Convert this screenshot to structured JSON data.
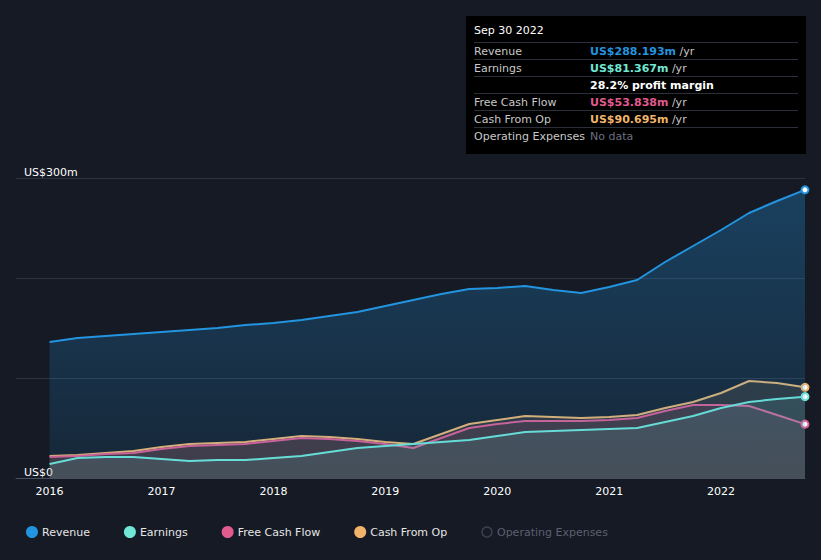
{
  "chart_data": {
    "type": "line",
    "x": [
      2016,
      2016.25,
      2016.5,
      2016.75,
      2017,
      2017.25,
      2017.5,
      2017.75,
      2018,
      2018.25,
      2018.5,
      2018.75,
      2019,
      2019.25,
      2019.5,
      2019.75,
      2020,
      2020.25,
      2020.5,
      2020.75,
      2021,
      2021.25,
      2021.5,
      2021.75,
      2022,
      2022.25,
      2022.5,
      2022.75
    ],
    "xlim": [
      2015.7,
      2022.75
    ],
    "xticks": [
      2016,
      2017,
      2018,
      2019,
      2020,
      2021,
      2022
    ],
    "ylim": [
      0,
      300
    ],
    "yticks": [
      {
        "value": 0,
        "label": "US$0"
      },
      {
        "value": 300,
        "label": "US$300m"
      }
    ],
    "grid": true,
    "legend": "bottom",
    "series": [
      {
        "name": "Revenue",
        "color": "#2394df",
        "values": [
          136,
          140,
          142,
          144,
          146,
          148,
          150,
          153,
          155,
          158,
          162,
          166,
          172,
          178,
          184,
          189,
          190,
          192,
          188,
          185,
          191,
          198,
          216,
          232,
          248,
          265,
          277,
          288.193
        ]
      },
      {
        "name": "Earnings",
        "color": "#71e7d6",
        "values": [
          14,
          20,
          21,
          21,
          19,
          17,
          18,
          18,
          20,
          22,
          26,
          30,
          32,
          34,
          36,
          38,
          42,
          46,
          47,
          48,
          49,
          50,
          56,
          62,
          70,
          76,
          79,
          81.367
        ]
      },
      {
        "name": "Free Cash Flow",
        "color": "#e15b8f",
        "values": [
          21,
          22,
          24,
          25,
          29,
          32,
          33,
          34,
          37,
          40,
          39,
          37,
          34,
          30,
          40,
          50,
          54,
          57,
          57,
          57,
          58,
          60,
          67,
          73,
          73,
          72,
          63,
          53.838
        ]
      },
      {
        "name": "Cash From Op",
        "color": "#f0b36b",
        "values": [
          22,
          23,
          25,
          27,
          31,
          34,
          35,
          36,
          39,
          42,
          41,
          39,
          36,
          34,
          44,
          54,
          58,
          62,
          61,
          60,
          61,
          63,
          70,
          76,
          85,
          97,
          95,
          90.695
        ]
      },
      {
        "name": "Operating Expenses",
        "color": "#3a4152",
        "values": [
          null,
          null,
          null,
          null,
          null,
          null,
          null,
          null,
          null,
          null,
          null,
          null,
          null,
          null,
          null,
          null,
          null,
          null,
          null,
          null,
          null,
          null,
          null,
          null,
          null,
          null,
          null,
          null
        ]
      }
    ],
    "annotation": {
      "title": "Sep 30 2022",
      "rows": [
        {
          "label": "Revenue",
          "text": "US$288.193m",
          "unit": " /yr",
          "color": "#2394df"
        },
        {
          "label": "Earnings",
          "text": "US$81.367m",
          "unit": " /yr",
          "color": "#71e7d6"
        },
        {
          "label": "",
          "text": "28.2% profit margin",
          "unit": "",
          "color": "#ffffff"
        },
        {
          "label": "Free Cash Flow",
          "text": "US$53.838m",
          "unit": " /yr",
          "color": "#e15b8f"
        },
        {
          "label": "Cash From Op",
          "text": "US$90.695m",
          "unit": " /yr",
          "color": "#f0b36b"
        },
        {
          "label": "Operating Expenses",
          "text": "No data",
          "unit": "",
          "color": "#6b7080"
        }
      ]
    }
  }
}
